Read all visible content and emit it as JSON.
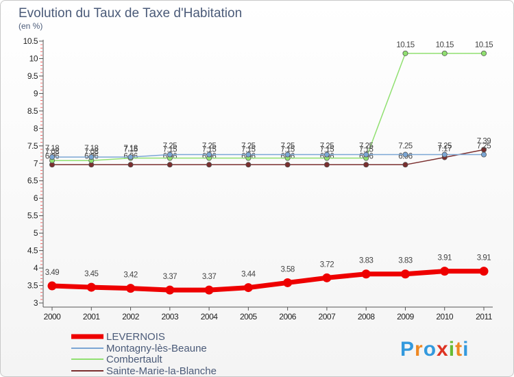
{
  "chart_data": {
    "type": "line",
    "title": "Evolution du Taux de Taxe d'Habitation",
    "subtitle": "(en %)",
    "xlabel": "",
    "ylabel": "(en %)",
    "categories": [
      "2000",
      "2001",
      "2002",
      "2003",
      "2004",
      "2005",
      "2006",
      "2007",
      "2008",
      "2009",
      "2010",
      "2011"
    ],
    "y_ticks": [
      "3",
      "3.5",
      "4",
      "4.5",
      "5",
      "5.5",
      "6",
      "6.5",
      "7",
      "7.5",
      "8",
      "8.5",
      "9",
      "9.5",
      "10",
      "10.5"
    ],
    "ylim": [
      3,
      10.5
    ],
    "series": [
      {
        "name": "Sainte-Marie-la-Blanche",
        "color": "#7a2e2e",
        "values": [
          6.96,
          6.96,
          6.96,
          6.96,
          6.96,
          6.96,
          6.96,
          6.96,
          6.96,
          6.96,
          7.17,
          7.39
        ],
        "labels": [
          "6.96",
          "6.96",
          "6.96",
          "6.96",
          "6.96",
          "6.96",
          "6.96",
          "6.96",
          "6.96",
          "6.96",
          "7.17",
          "7.39"
        ]
      },
      {
        "name": "Combertault",
        "color": "#90e070",
        "values": [
          7.08,
          7.08,
          7.15,
          7.15,
          7.15,
          7.15,
          7.15,
          7.15,
          7.15,
          10.15,
          10.15,
          10.15
        ],
        "labels": [
          "7.08",
          "7.08",
          "7.15",
          "7.15",
          "7.15",
          "7.15",
          "7.15",
          "7.15",
          "7.15",
          "10.15",
          "10.15",
          "10.15"
        ]
      },
      {
        "name": "Montagny-lès-Beaune",
        "color": "#7ba6d4",
        "values": [
          7.18,
          7.18,
          7.18,
          7.25,
          7.25,
          7.25,
          7.25,
          7.25,
          7.25,
          7.25,
          7.25,
          7.25
        ],
        "labels": [
          "7.18",
          "7.18",
          "7.18",
          "7.25",
          "7.25",
          "7.25",
          "7.25",
          "7.25",
          "7.25",
          "7.25",
          "7.25",
          "7.25"
        ]
      },
      {
        "name": "LEVERNOIS",
        "color": "#ee0000",
        "values": [
          3.49,
          3.45,
          3.42,
          3.37,
          3.37,
          3.44,
          3.58,
          3.72,
          3.83,
          3.83,
          3.91,
          3.91
        ],
        "labels": [
          "3.49",
          "3.45",
          "3.42",
          "3.37",
          "3.37",
          "3.44",
          "3.58",
          "3.72",
          "3.83",
          "3.83",
          "3.91",
          "3.91"
        ]
      }
    ],
    "legend": [
      "LEVERNOIS",
      "Montagny-lès-Beaune",
      "Combertault",
      "Sainte-Marie-la-Blanche"
    ],
    "legend_position": "bottom-left",
    "grid": false
  },
  "logo": {
    "text": "Proxiti",
    "letters": [
      "P",
      "r",
      "o",
      "x",
      "i",
      "t",
      "i"
    ],
    "colors": [
      "#3399dd",
      "#ee8822",
      "#3399dd",
      "#dd3322",
      "#66bb33",
      "#ee8822",
      "#3399dd"
    ]
  }
}
